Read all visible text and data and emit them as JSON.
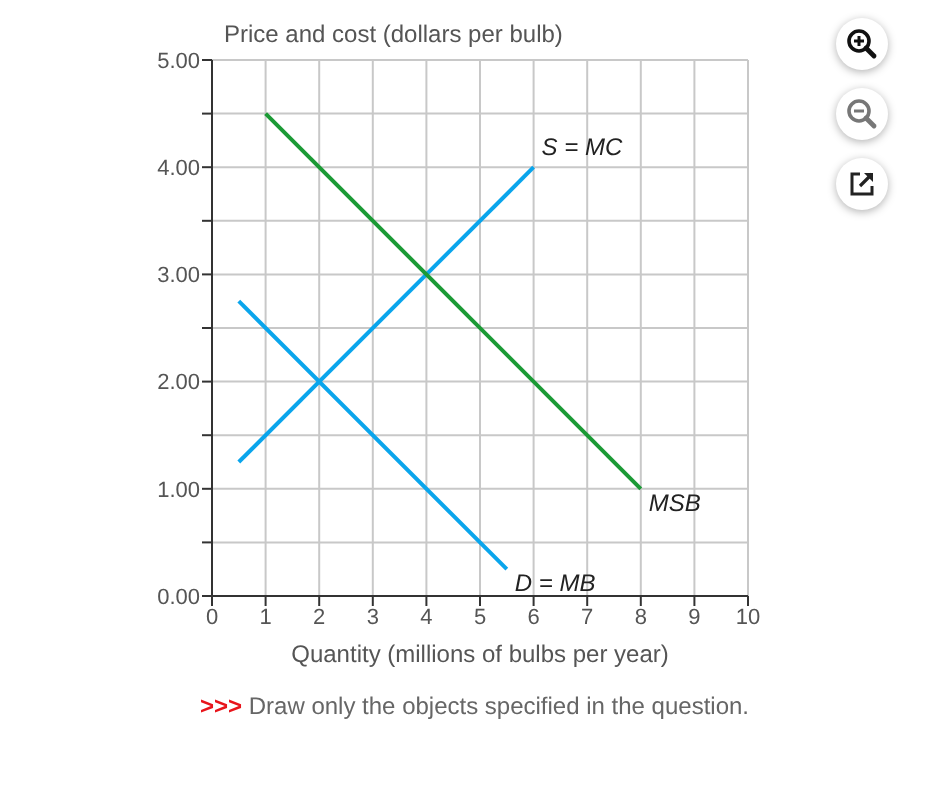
{
  "chart_data": {
    "type": "line",
    "xlabel": "Quantity (millions of bulbs per year)",
    "ylabel": "Price and cost (dollars per bulb)",
    "annotations": [
      ">>> Draw only the objects specified in the question."
    ],
    "series": [
      {
        "name": "S = MC",
        "color": "#0aa5ec",
        "x": [
          0.5,
          6
        ],
        "values": [
          1.25,
          4.0
        ]
      },
      {
        "name": "D = MB",
        "color": "#0aa5ec",
        "x": [
          0.5,
          5.5
        ],
        "values": [
          2.75,
          0.25
        ]
      },
      {
        "name": "MSB",
        "color": "#1b9a35",
        "x": [
          1,
          8
        ],
        "values": [
          4.5,
          1.0
        ]
      }
    ],
    "xlim": [
      0,
      10
    ],
    "xticks": [
      0,
      1,
      2,
      3,
      4,
      5,
      6,
      7,
      8,
      9,
      10
    ],
    "ylim": [
      0,
      5
    ],
    "yticks": [
      {
        "value": 0,
        "label": "0.00"
      },
      {
        "value": 0.5,
        "label": null
      },
      {
        "value": 1,
        "label": "1.00"
      },
      {
        "value": 1.5,
        "label": null
      },
      {
        "value": 2,
        "label": "2.00"
      },
      {
        "value": 2.5,
        "label": null
      },
      {
        "value": 3,
        "label": "3.00"
      },
      {
        "value": 3.5,
        "label": null
      },
      {
        "value": 4,
        "label": "4.00"
      },
      {
        "value": 4.5,
        "label": null
      },
      {
        "value": 5,
        "label": "5.00"
      }
    ],
    "grid": true,
    "legend": false,
    "marker": "none",
    "line_style": "solid"
  }
}
